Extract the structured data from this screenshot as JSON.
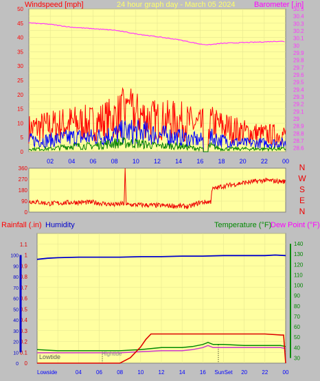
{
  "title": "24 hour graph day - March 05 2024",
  "colors": {
    "plot_bg": "#ffffa0",
    "frame_bg": "#c0c0c0",
    "wind_max": "#ff0000",
    "wind_avg": "#0000ff",
    "wind_min": "#008000",
    "barometer": "#ff33ff",
    "direction": "#ee0000",
    "rainfall": "#dd0000",
    "humidity": "#0000cc",
    "temperature": "#008800",
    "dewpoint": "#cc33cc",
    "dew_label": "#ff00ff",
    "grid": "#e6e690"
  },
  "chart_data": [
    {
      "type": "line",
      "panel": "wind-barometer",
      "labels": {
        "left": "Windspeed [mph]",
        "right": "Barometer [.in]"
      },
      "x_ticks": [
        "02",
        "04",
        "06",
        "08",
        "10",
        "12",
        "14",
        "16",
        "18",
        "20",
        "22",
        "00"
      ],
      "y_left_ticks": [
        "0",
        "5",
        "10",
        "15",
        "20",
        "25",
        "30",
        "35",
        "40",
        "45",
        "50"
      ],
      "ylim_left": [
        0,
        50
      ],
      "y_right_ticks": [
        "28.6",
        "28.7",
        "28.8",
        "28.9",
        "29",
        "29.1",
        "29.2",
        "29.3",
        "29.4",
        "29.5",
        "29.6",
        "29.7",
        "29.8",
        "29.9",
        "30",
        "30.1",
        "30.2",
        "30.3",
        "30.4",
        "30.5"
      ],
      "ylim_right": [
        28.55,
        30.5
      ],
      "x_range_hours": [
        0,
        24
      ],
      "series": [
        {
          "name": "Barometer",
          "color_key": "barometer",
          "axis": "right",
          "x": [
            0,
            2,
            4,
            6,
            8,
            10,
            12,
            14,
            15,
            16,
            16.8,
            18,
            20,
            22,
            23.5,
            24
          ],
          "y": [
            30.31,
            30.29,
            30.25,
            30.23,
            30.21,
            30.16,
            30.12,
            30.08,
            30.05,
            30.02,
            30.01,
            30.03,
            30.04,
            30.05,
            30.06,
            30.05
          ]
        },
        {
          "name": "Max wind",
          "color_key": "wind_max",
          "axis": "left",
          "kind": "noise",
          "gaps": [
            [
              16.3,
              16.8
            ]
          ],
          "profile_x": [
            0,
            2,
            4,
            6,
            8,
            9,
            10,
            12,
            14,
            16,
            17,
            18,
            20,
            22,
            24
          ],
          "profile_y": [
            8,
            9,
            10,
            10,
            12,
            14,
            13,
            11,
            11,
            9,
            10,
            9,
            7,
            6,
            6
          ]
        },
        {
          "name": "Avg wind",
          "color_key": "wind_avg",
          "axis": "left",
          "kind": "noise",
          "gaps": [
            [
              16.3,
              16.8
            ]
          ],
          "profile_x": [
            0,
            2,
            4,
            6,
            8,
            9,
            10,
            12,
            14,
            16,
            17,
            18,
            20,
            22,
            24
          ],
          "profile_y": [
            4,
            4,
            5,
            5,
            6,
            7,
            7,
            6,
            5,
            4,
            5,
            4,
            3,
            3,
            3
          ]
        },
        {
          "name": "Min wind",
          "color_key": "wind_min",
          "axis": "left",
          "kind": "noise",
          "gaps": [
            [
              16.3,
              16.8
            ]
          ],
          "profile_x": [
            0,
            2,
            4,
            6,
            8,
            9,
            10,
            12,
            14,
            16,
            17,
            18,
            20,
            22,
            24
          ],
          "profile_y": [
            1,
            1,
            2,
            2,
            3,
            3,
            3,
            2,
            2,
            1,
            2,
            1,
            1,
            1,
            1
          ]
        }
      ]
    },
    {
      "type": "line",
      "panel": "wind-direction",
      "labels": {
        "right": [
          "N",
          "W",
          "S",
          "E",
          "N"
        ]
      },
      "y_ticks": [
        "0",
        "90",
        "180",
        "270",
        "360"
      ],
      "ylim": [
        0,
        360
      ],
      "x_range_hours": [
        0,
        24
      ],
      "series": [
        {
          "name": "Direction",
          "color_key": "direction",
          "kind": "noise",
          "profile_x": [
            0,
            2,
            4,
            6,
            8,
            8.9,
            9,
            9.1,
            10,
            12,
            14,
            15,
            16,
            17,
            17.1,
            18,
            20,
            22,
            24
          ],
          "profile_y": [
            90,
            70,
            80,
            80,
            60,
            70,
            360,
            60,
            60,
            55,
            50,
            45,
            80,
            85,
            185,
            210,
            240,
            260,
            250
          ]
        }
      ]
    },
    {
      "type": "line",
      "panel": "rain-humidity-temperature",
      "labels": {
        "rainfall": "Rainfall (.in)",
        "humidity": "Humidity",
        "temperature": "Temperature (°F)",
        "dewpoint": "Dew Point (°F)"
      },
      "y_left_ticks": [
        "0",
        "0.1",
        "0.2",
        "0.3",
        "0.4",
        "0.5",
        "0.6",
        "0.7",
        "0.8",
        "0.9",
        "1",
        "1.1"
      ],
      "ylim_rain": [
        0,
        1.2
      ],
      "y_hum_ticks": [
        "0",
        "10",
        "20",
        "30",
        "40",
        "50",
        "60",
        "70",
        "80",
        "90",
        "100"
      ],
      "ylim_humidity": [
        0,
        120
      ],
      "y_right_ticks": [
        "30",
        "40",
        "50",
        "60",
        "70",
        "80",
        "90",
        "100",
        "110",
        "120",
        "130",
        "140"
      ],
      "ylim_right": [
        25,
        150
      ],
      "x_ticks": [
        "Lowside",
        "",
        "04",
        "06",
        "08",
        "10",
        "12",
        "14",
        "16",
        "SunSet",
        "20",
        "22",
        "00"
      ],
      "annotations": {
        "low_tide": "Lowtide",
        "high_tide": "Hightide"
      },
      "x_range_hours": [
        0,
        24
      ],
      "series": [
        {
          "name": "Rainfall",
          "color_key": "rainfall",
          "x": [
            0,
            8.0,
            9.0,
            10.0,
            10.5,
            11.0,
            12,
            14,
            16,
            18,
            20,
            22,
            23.6,
            23.8,
            24
          ],
          "y": [
            0,
            0,
            0.05,
            0.15,
            0.22,
            0.27,
            0.27,
            0.27,
            0.27,
            0.27,
            0.27,
            0.27,
            0.26,
            0.26,
            0.0
          ]
        },
        {
          "name": "Humidity",
          "color_key": "humidity",
          "x": [
            0,
            1,
            2,
            4,
            6,
            8,
            10,
            12,
            14,
            16,
            18,
            20,
            22,
            23,
            24
          ],
          "y": [
            96,
            97,
            97.5,
            98,
            98,
            98,
            98.5,
            98.5,
            99,
            99,
            99.5,
            99.5,
            99.5,
            100,
            99.5
          ]
        },
        {
          "name": "Temperature",
          "color_key": "temperature",
          "x": [
            0,
            1,
            2,
            4,
            6,
            8,
            10,
            12,
            14,
            15,
            16,
            16.5,
            17,
            18,
            20,
            22,
            23.5,
            24
          ],
          "y": [
            38,
            37.5,
            37,
            37,
            37,
            37,
            38,
            40,
            40,
            41,
            43,
            45,
            43,
            43,
            42,
            42,
            42,
            41
          ]
        },
        {
          "name": "Dew Point",
          "color_key": "dewpoint",
          "x": [
            0,
            2,
            4,
            6,
            8,
            10,
            12,
            14,
            15,
            16,
            16.5,
            17,
            18,
            20,
            22,
            23.5,
            24
          ],
          "y": [
            35,
            35,
            35,
            35,
            35,
            36,
            37,
            37,
            38,
            40,
            42,
            40,
            40,
            40,
            40,
            40,
            39
          ]
        }
      ]
    }
  ]
}
